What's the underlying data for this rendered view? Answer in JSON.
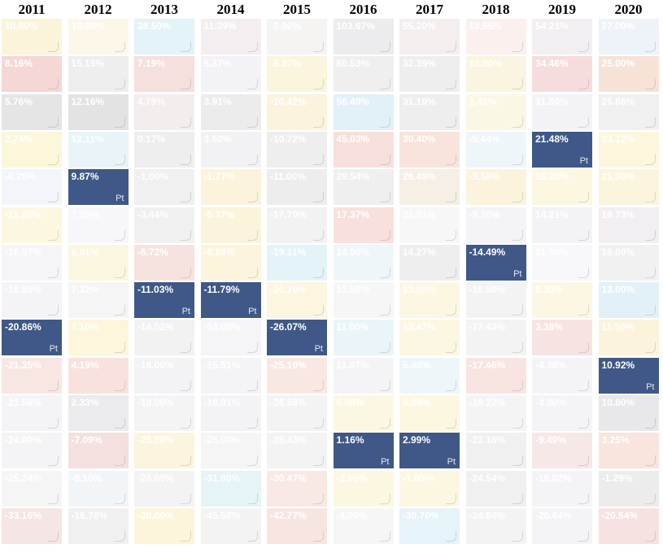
{
  "chart_data": {
    "type": "table",
    "title": "",
    "columns": [
      "2011",
      "2012",
      "2013",
      "2014",
      "2015",
      "2016",
      "2017",
      "2018",
      "2019",
      "2020"
    ],
    "highlight_label": "Pt",
    "highlight_color": "#3f5887",
    "cells": [
      [
        "10.60%",
        "12.90%",
        "38.50%",
        "11.39%",
        "-2.90%",
        "103.67%",
        "55.20%",
        "18.55%",
        "54.21%",
        "27.00%"
      ],
      [
        "8.16%",
        "15.15%",
        "7.19%",
        "5.37%",
        "-5.37%",
        "60.53%",
        "32.39%",
        "10.00%",
        "34.46%",
        "25.00%"
      ],
      [
        "5.76%",
        "12.16%",
        "4.79%",
        "3.91%",
        "-10.42%",
        "56.40%",
        "31.19%",
        "1.40%",
        "31.80%",
        "25.86%"
      ],
      [
        "2.74%",
        "12.11%",
        "0.17%",
        "3.60%",
        "-10.72%",
        "45.03%",
        "30.40%",
        "-5.44%",
        "21.48%",
        "23.12%"
      ],
      [
        "-6.20%",
        "9.87%",
        "-1.00%",
        "-1.77%",
        "-11.00%",
        "29.54%",
        "26.49%",
        "-9.58%",
        "15.20%",
        "21.00%"
      ],
      [
        "-11.20%",
        "7.29%",
        "-3.44%",
        "-5.37%",
        "-17.79%",
        "17.37%",
        "21.51%",
        "-9.20%",
        "14.21%",
        "19.73%"
      ],
      [
        "-16.07%",
        "6.91%",
        "-6.72%",
        "-8.88%",
        "-19.11%",
        "14.90%",
        "14.27%",
        "-14.49%",
        "11.30%",
        "16.00%"
      ],
      [
        "-18.85%",
        "7.32%",
        "-11.03%",
        "-11.79%",
        "-20.70%",
        "13.58%",
        "13.00%",
        "-16.50%",
        "8.30%",
        "13.00%"
      ],
      [
        "-20.86%",
        "7.10%",
        "-14.02%",
        "-14.00%",
        "-26.07%",
        "11.00%",
        "12.47%",
        "-17.43%",
        "3.38%",
        "11.50%"
      ],
      [
        "-21.35%",
        "4.19%",
        "-16.00%",
        "-15.51%",
        "-25.10%",
        "11.07%",
        "5.40%",
        "-17.46%",
        "-4.38%",
        "10.92%"
      ],
      [
        "-21.56%",
        "2.33%",
        "-18.00%",
        "-18.01%",
        "-26.58%",
        "5.00%",
        "4.00%",
        "-19.22%",
        "-4.90%",
        "10.80%"
      ],
      [
        "-24.00%",
        "-7.09%",
        "-25.00%",
        "-25.00%",
        "-28.43%",
        "1.16%",
        "2.99%",
        "-22.16%",
        "-9.49%",
        "3.25%"
      ],
      [
        "-25.24%",
        "-8.10%",
        "-28.00%",
        "-31.00%",
        "-30.47%",
        "-2.00%",
        "-1.00%",
        "-24.54%",
        "-18.02%",
        "-1.29%"
      ],
      [
        "-33.16%",
        "-16.78%",
        "-30.00%",
        "-45.58%",
        "-42.77%",
        "-4.00%",
        "-30.70%",
        "-24.84%",
        "-20.64%",
        "-20.54%"
      ]
    ],
    "highlighted": [
      [
        4,
        1
      ],
      [
        8,
        0
      ],
      [
        7,
        2
      ],
      [
        7,
        3
      ],
      [
        8,
        4
      ],
      [
        11,
        5
      ],
      [
        11,
        6
      ],
      [
        6,
        7
      ],
      [
        3,
        8
      ],
      [
        9,
        9
      ]
    ],
    "faded_colors": [
      [
        "#fbf4da",
        "#fcf7e9",
        "#e4f3f8",
        "#f4eef0",
        "#f6f3f3",
        "#ececee",
        "#f4eeee",
        "#fbf0ee",
        "#f3eef2",
        "#eef2f9"
      ],
      [
        "#f5d7d5",
        "#eeeeef",
        "#f5e0de",
        "#f3f3f7",
        "#fbf5de",
        "#efefef",
        "#eeeeee",
        "#faf4e1",
        "#f6dcdc",
        "#f7e2d8"
      ],
      [
        "#e5e5e6",
        "#e3e3e4",
        "#f3eded",
        "#ececed",
        "#fcf3dc",
        "#e1f1f7",
        "#eeeeee",
        "#fbf7e5",
        "#f3f3f7",
        "#f0f0f0"
      ],
      [
        "#fcf6db",
        "#e8f4f8",
        "#eeeeef",
        "#f2f1f3",
        "#eeeeee",
        "#f7e0dc",
        "#f9e3dd",
        "#eef6fa",
        "#fcf7e1",
        "#fcf6dc"
      ],
      [
        "#f2f5fa",
        "#fbf4d8",
        "#f0f0f0",
        "#fbf3dc",
        "#ededee",
        "#efefef",
        "#f5efe6",
        "#fcf3dc",
        "#fcf7e1",
        "#fcf5dd"
      ],
      [
        "#fcf7e0",
        "#f6f6fb",
        "#f0f0f0",
        "#fbf4dc",
        "#f2f2f2",
        "#f8e0dc",
        "#f7f7f7",
        "#f4f4f7",
        "#f3f3f6",
        "#f3eef2"
      ],
      [
        "#f5f5f8",
        "#fbf6df",
        "#f6e3e0",
        "#fcf4dc",
        "#e4f3f8",
        "#eef6fa",
        "#eeeeee",
        "#f4eeee",
        "#f8f8fb",
        "#f1f1f2"
      ],
      [
        "#f4f4f6",
        "#f5f5f6",
        "#f2f2f2",
        "#f2f2f2",
        "#fcf5e0",
        "#f6f6f6",
        "#fcf7e3",
        "#f3f3f4",
        "#fcf7e3",
        "#e1f1f7"
      ],
      [
        "#ececee",
        "#fcf6dc",
        "#f2f2f2",
        "#f5f5f7",
        "#f3f3f6",
        "#eaf5f9",
        "#fcf7e3",
        "#f3f3f3",
        "#f7e4e2",
        "#fcf3dc"
      ],
      [
        "#f8e6e2",
        "#f9e2dd",
        "#f3f3f6",
        "#f4f4f6",
        "#f9e8e2",
        "#f4f4f6",
        "#eef6fa",
        "#f8e4e0",
        "#f4f4f7",
        "#3f5887"
      ],
      [
        "#f4f4f6",
        "#ebebed",
        "#f4f4f4",
        "#f3f3f6",
        "#f3f3f3",
        "#fcf7e3",
        "#fcf7e1",
        "#f4f4f4",
        "#f4f4f7",
        "#e8e8ea"
      ],
      [
        "#f4f4f6",
        "#f4e0de",
        "#fbf5de",
        "#f5f5f6",
        "#f3f3f4",
        "#3f5887",
        "#3f5887",
        "#f0f0f0",
        "#f6e8e6",
        "#f9e4de"
      ],
      [
        "#f5f5f6",
        "#f2f5f8",
        "#f3f3f4",
        "#e6f3f7",
        "#f9e8e4",
        "#fcf7e1",
        "#fcf7e1",
        "#f0f0f0",
        "#f4f4f6",
        "#ececed"
      ],
      [
        "#f5e5e4",
        "#f0f0f1",
        "#fcf5dc",
        "#f3f3f4",
        "#f7e5e2",
        "#f6f6f7",
        "#e6f3f8",
        "#f3f3f4",
        "#f4f4f7",
        "#f6e2e0"
      ]
    ]
  }
}
